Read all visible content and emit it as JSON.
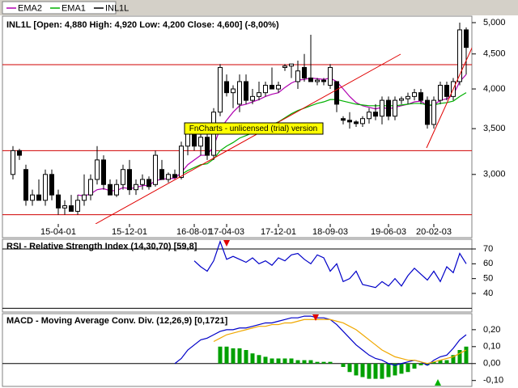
{
  "chart_data": [
    {
      "type": "candlestick",
      "title": "INL1L [Open: 4,880  High: 4,920  Low: 4,200  Close: 4,600] (-8,00%)",
      "annotation": "FnCharts - unlicensed (trial) version",
      "categories": [
        null,
        null,
        null,
        null,
        null,
        null,
        null,
        "15-04-01",
        null,
        null,
        null,
        null,
        null,
        null,
        null,
        null,
        null,
        null,
        "15-12-01",
        null,
        null,
        null,
        null,
        null,
        null,
        null,
        null,
        null,
        "16-08-01",
        null,
        null,
        null,
        null,
        "17-04-03",
        null,
        null,
        null,
        null,
        null,
        null,
        null,
        "17-12-01",
        null,
        null,
        null,
        null,
        null,
        null,
        null,
        "18-09-03",
        null,
        null,
        null,
        null,
        null,
        null,
        null,
        null,
        "19-06-03",
        null,
        null,
        null,
        null,
        null,
        null,
        "20-02-03",
        null,
        null,
        null,
        null,
        null
      ],
      "ohlc": {
        "name": "INL1L",
        "color": "#000000",
        "open": [
          3000,
          3250,
          3050,
          2750,
          2800,
          2750,
          3000,
          2800,
          2680,
          2700,
          2650,
          2750,
          2800,
          2950,
          3150,
          2900,
          2800,
          2900,
          3050,
          2850,
          2900,
          2950,
          2900,
          3050,
          2950,
          3000,
          2970,
          3300,
          3450,
          3300,
          3400,
          3200,
          3700,
          4100,
          3950,
          3800,
          4100,
          3850,
          3900,
          3950,
          4050,
          4000,
          4300,
          4320,
          4100,
          4300,
          4150,
          4100,
          4120,
          4050,
          4100,
          3620,
          3600,
          3580,
          3560,
          3620,
          3700,
          3650,
          3850,
          3650,
          3850,
          3870,
          3900,
          3950,
          3850,
          3550,
          3850,
          4050,
          3900,
          4100,
          4880
        ],
        "high": [
          3300,
          3270,
          3100,
          2850,
          2950,
          3050,
          3050,
          2850,
          2750,
          2800,
          2800,
          3000,
          3000,
          3300,
          3200,
          2950,
          2950,
          3100,
          3150,
          2950,
          3000,
          2980,
          3250,
          3150,
          3020,
          3050,
          3350,
          3500,
          3550,
          3450,
          3500,
          3750,
          4350,
          4200,
          4050,
          4200,
          4200,
          4000,
          4100,
          4100,
          4300,
          4100,
          4350,
          4350,
          4400,
          4500,
          4800,
          4150,
          4150,
          4350,
          4100,
          3650,
          3700,
          3600,
          3650,
          3750,
          3800,
          3900,
          3900,
          3900,
          3900,
          3950,
          4000,
          4000,
          3900,
          3900,
          4100,
          4100,
          4150,
          5000,
          4920
        ],
        "low": [
          2950,
          3150,
          2700,
          2700,
          2750,
          2700,
          2750,
          2620,
          2620,
          2650,
          2620,
          2700,
          2750,
          2900,
          2850,
          2800,
          2780,
          2850,
          2800,
          2800,
          2850,
          2850,
          2880,
          2950,
          2920,
          2960,
          2950,
          3200,
          3250,
          3200,
          3150,
          3150,
          3650,
          3900,
          3750,
          3700,
          3800,
          3800,
          3850,
          3900,
          4000,
          3950,
          4250,
          4150,
          4000,
          4100,
          4100,
          4050,
          4050,
          4000,
          3700,
          3550,
          3500,
          3520,
          3520,
          3560,
          3600,
          3550,
          3600,
          3600,
          3800,
          3800,
          3850,
          3800,
          3500,
          3500,
          3800,
          3850,
          3850,
          4050,
          4200
        ],
        "close": [
          3250,
          3200,
          2750,
          2800,
          2750,
          3000,
          2800,
          2680,
          2700,
          2650,
          2750,
          2800,
          2950,
          3150,
          2900,
          2800,
          2900,
          3050,
          2850,
          2900,
          2950,
          2880,
          3200,
          2950,
          3000,
          2970,
          3300,
          3450,
          3300,
          3400,
          3200,
          3700,
          4300,
          3950,
          4000,
          4100,
          3850,
          3900,
          3950,
          4050,
          4000,
          4050,
          4320,
          4350,
          4250,
          4150,
          4100,
          4120,
          4100,
          4300,
          3800,
          3600,
          3580,
          3560,
          3620,
          3700,
          3650,
          3850,
          3650,
          3850,
          3870,
          3900,
          3950,
          3850,
          3550,
          3850,
          4050,
          3900,
          4100,
          4880,
          4600
        ]
      },
      "series": [
        {
          "name": "EMA2",
          "color": "#b000b0",
          "values": [
            null,
            null,
            null,
            null,
            null,
            null,
            null,
            null,
            null,
            null,
            2800,
            2790,
            2810,
            2850,
            2860,
            2840,
            2840,
            2870,
            2860,
            2870,
            2890,
            2890,
            2940,
            2950,
            2960,
            2960,
            3020,
            3100,
            3150,
            3200,
            3200,
            3300,
            3500,
            3600,
            3700,
            3780,
            3800,
            3830,
            3860,
            3900,
            3930,
            3950,
            4020,
            4080,
            4120,
            4130,
            4150,
            4140,
            4130,
            4150,
            4100,
            4000,
            3900,
            3820,
            3780,
            3760,
            3740,
            3760,
            3740,
            3760,
            3780,
            3800,
            3830,
            3840,
            3780,
            3790,
            3850,
            3870,
            3920,
            4100,
            4200
          ]
        },
        {
          "name": "EMA1",
          "color": "#00b000",
          "values": [
            null,
            null,
            null,
            null,
            null,
            null,
            null,
            null,
            null,
            null,
            null,
            null,
            null,
            null,
            null,
            null,
            null,
            null,
            null,
            null,
            null,
            null,
            null,
            null,
            null,
            null,
            3000,
            3040,
            3070,
            3100,
            3110,
            3160,
            3250,
            3300,
            3340,
            3390,
            3420,
            3450,
            3480,
            3520,
            3550,
            3580,
            3630,
            3680,
            3720,
            3750,
            3780,
            3810,
            3830,
            3860,
            3860,
            3840,
            3820,
            3800,
            3790,
            3780,
            3780,
            3780,
            3780,
            3780,
            3790,
            3800,
            3810,
            3810,
            3790,
            3790,
            3810,
            3820,
            3840,
            3900,
            3950
          ]
        }
      ],
      "log_scale": true,
      "ylim": [
        2540,
        5110
      ],
      "yticks": [
        {
          "value": 3000,
          "label": "3,000"
        },
        {
          "value": 3500,
          "label": "3,500"
        },
        {
          "value": 4000,
          "label": "4,000"
        },
        {
          "value": 4500,
          "label": "4,500"
        },
        {
          "value": 5000,
          "label": "5,000"
        }
      ],
      "hlines": [
        4340,
        3250,
        2620
      ],
      "hline_color": "#d00000"
    },
    {
      "type": "line",
      "title": "RSI - Relative Strength Index (14,30,70) [59,8]",
      "series": [
        {
          "color": "#0000c8",
          "values": [
            null,
            null,
            null,
            null,
            null,
            null,
            null,
            null,
            null,
            null,
            null,
            null,
            null,
            null,
            null,
            null,
            null,
            null,
            null,
            null,
            null,
            null,
            null,
            null,
            null,
            null,
            null,
            null,
            62,
            58,
            55,
            62,
            75,
            63,
            65,
            63,
            61,
            64,
            60,
            62,
            59,
            64,
            62,
            66,
            67,
            63,
            60,
            66,
            64,
            55,
            60,
            48,
            50,
            55,
            46,
            45,
            44,
            48,
            45,
            50,
            45,
            52,
            57,
            53,
            49,
            55,
            48,
            58,
            54,
            67,
            60
          ]
        }
      ],
      "ylim": [
        28,
        76
      ],
      "yticks": [
        40,
        50,
        60,
        70
      ],
      "levels": [
        30,
        70
      ]
    },
    {
      "type": "combo",
      "title": "MACD - Moving Average Conv. Div. (12,26,9) [0,1721]",
      "series": [
        {
          "color": "#0000c8",
          "values": [
            null,
            null,
            null,
            null,
            null,
            null,
            null,
            null,
            null,
            null,
            null,
            null,
            null,
            null,
            null,
            null,
            null,
            null,
            null,
            null,
            null,
            null,
            null,
            null,
            null,
            0.0,
            0.03,
            0.08,
            0.11,
            0.14,
            0.15,
            0.17,
            0.19,
            0.2,
            0.2,
            0.21,
            0.21,
            0.22,
            0.23,
            0.24,
            0.24,
            0.25,
            0.26,
            0.27,
            0.27,
            0.28,
            0.28,
            0.27,
            0.27,
            0.26,
            0.23,
            0.19,
            0.15,
            0.11,
            0.08,
            0.05,
            0.03,
            0.02,
            0.0,
            -0.01,
            0.0,
            0.01,
            0.02,
            0.01,
            -0.01,
            0.02,
            0.04,
            0.05,
            0.09,
            0.14,
            0.17
          ]
        },
        {
          "color": "#f0a800",
          "values": [
            null,
            null,
            null,
            null,
            null,
            null,
            null,
            null,
            null,
            null,
            null,
            null,
            null,
            null,
            null,
            null,
            null,
            null,
            null,
            null,
            null,
            null,
            null,
            null,
            null,
            null,
            null,
            null,
            null,
            null,
            null,
            0.13,
            0.15,
            0.17,
            0.18,
            0.19,
            0.2,
            0.21,
            0.22,
            0.22,
            0.23,
            0.23,
            0.24,
            0.24,
            0.25,
            0.26,
            0.26,
            0.26,
            0.26,
            0.26,
            0.25,
            0.24,
            0.22,
            0.2,
            0.17,
            0.14,
            0.11,
            0.08,
            0.06,
            0.04,
            0.03,
            0.02,
            0.02,
            0.01,
            0.0,
            0.01,
            0.02,
            0.03,
            0.04,
            0.06,
            0.08
          ]
        }
      ],
      "bars": {
        "color": "#00a000",
        "values": [
          null,
          null,
          null,
          null,
          null,
          null,
          null,
          null,
          null,
          null,
          null,
          null,
          null,
          null,
          null,
          null,
          null,
          null,
          null,
          null,
          null,
          null,
          null,
          null,
          null,
          null,
          null,
          null,
          null,
          null,
          null,
          null,
          0.1,
          0.1,
          0.09,
          0.09,
          0.08,
          0.06,
          0.05,
          0.04,
          0.03,
          0.03,
          0.03,
          0.03,
          0.02,
          0.02,
          0.02,
          0.01,
          0.01,
          0.01,
          0.0,
          -0.02,
          -0.05,
          -0.07,
          -0.08,
          -0.09,
          -0.09,
          -0.09,
          -0.08,
          -0.07,
          -0.06,
          -0.05,
          -0.03,
          -0.01,
          -0.01,
          0.01,
          0.02,
          0.02,
          0.05,
          0.08,
          0.1
        ]
      },
      "ylim": [
        -0.13,
        0.29
      ],
      "yticks": [
        {
          "value": -0.1,
          "label": "-0,10"
        },
        {
          "value": 0,
          "label": "0,00"
        },
        {
          "value": 0.1,
          "label": "0,10"
        },
        {
          "value": 0.2,
          "label": "0,20"
        }
      ],
      "levels": [
        0
      ]
    }
  ]
}
